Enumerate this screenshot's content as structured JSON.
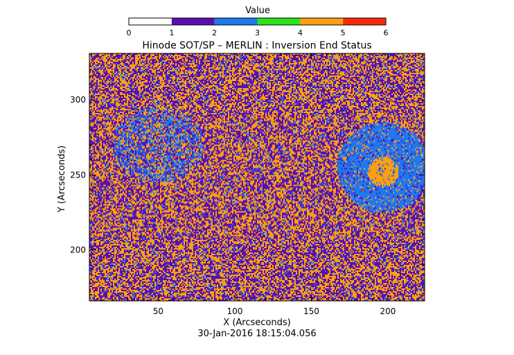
{
  "chart_data": {
    "type": "heatmap",
    "title": "Hinode SOT/SP – MERLIN : Inversion End Status",
    "xlabel": "X (Arcseconds)",
    "ylabel": "Y (Arcseconds)",
    "timestamp": "30-Jan-2016 18:15:04.056",
    "xlim": [
      5,
      224
    ],
    "ylim": [
      166,
      331
    ],
    "x_ticks": [
      50,
      100,
      150,
      200
    ],
    "y_ticks": [
      200,
      250,
      300
    ],
    "colorbar": {
      "label": "Value",
      "range": [
        0,
        6
      ],
      "ticks": [
        0,
        1,
        2,
        3,
        4,
        5,
        6
      ],
      "colors": [
        "#ffffff",
        "#5a0fae",
        "#1e78f0",
        "#2ae21a",
        "#ff9f0f",
        "#ff2a06"
      ]
    },
    "map_description_values": {
      "dominant_values": [
        1,
        4
      ],
      "background_fraction_value_1": 0.45,
      "background_fraction_value_4": 0.45,
      "background_fraction_value_2": 0.1
    },
    "features": [
      {
        "name": "sunspot-penumbra",
        "value": 2,
        "center": [
          197,
          255
        ],
        "radius_x": 30,
        "radius_y": 30
      },
      {
        "name": "sunspot-umbra",
        "value": 4,
        "center": [
          197,
          252
        ],
        "radius_x": 10,
        "radius_y": 10
      },
      {
        "name": "plage-region",
        "value": 2,
        "center": [
          50,
          270
        ],
        "radius_x": 30,
        "radius_y": 25
      }
    ]
  }
}
